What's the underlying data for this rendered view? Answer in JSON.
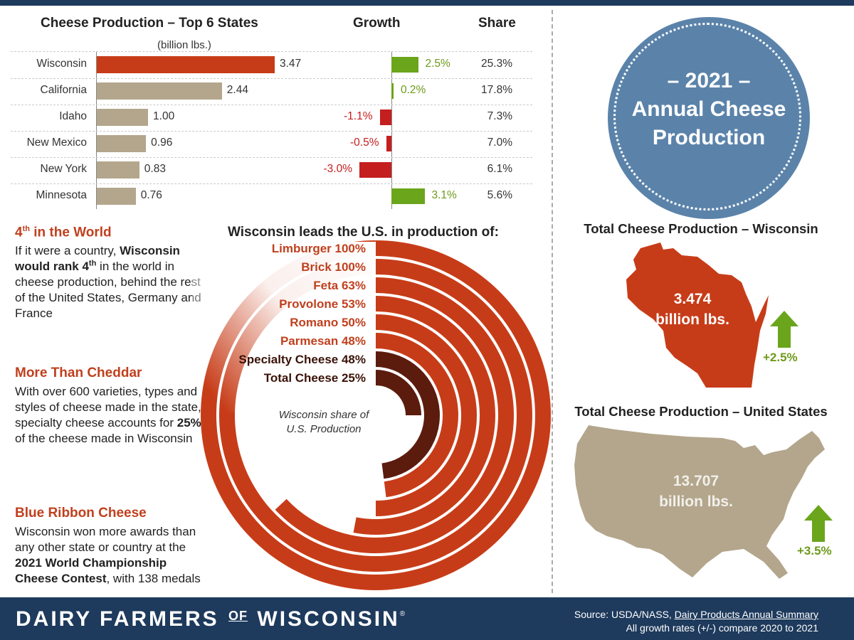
{
  "chart_data": [
    {
      "type": "bar",
      "title": "Cheese Production – Top 6 States",
      "unit": "(billion lbs.)",
      "categories": [
        "Wisconsin",
        "California",
        "Idaho",
        "New Mexico",
        "New York",
        "Minnesota"
      ],
      "values": [
        3.47,
        2.44,
        1.0,
        0.96,
        0.83,
        0.76
      ],
      "value_labels": [
        "3.47",
        "2.44",
        "1.00",
        "0.96",
        "0.83",
        "0.76"
      ],
      "colors": [
        "#c73c18",
        "#b3a68c",
        "#b3a68c",
        "#b3a68c",
        "#b3a68c",
        "#b3a68c"
      ],
      "xlim": [
        0,
        3.47
      ],
      "growth_title": "Growth",
      "growth": [
        2.5,
        0.2,
        -1.1,
        -0.5,
        -3.0,
        3.1
      ],
      "growth_labels": [
        "2.5%",
        "0.2%",
        "-1.1%",
        "-0.5%",
        "-3.0%",
        "3.1%"
      ],
      "growth_colors": {
        "positive": "#6aa51b",
        "negative": "#c41e1e"
      },
      "share_title": "Share",
      "share_labels": [
        "25.3%",
        "17.8%",
        "7.3%",
        "7.0%",
        "6.1%",
        "5.6%"
      ]
    },
    {
      "type": "radial_bar",
      "title": "Wisconsin leads the U.S. in production of:",
      "center_label": "Wisconsin share of U.S. Production",
      "categories": [
        "Limburger",
        "Brick",
        "Feta",
        "Provolone",
        "Romano",
        "Parmesan",
        "Specialty Cheese",
        "Total Cheese"
      ],
      "values": [
        100,
        100,
        63,
        53,
        50,
        48,
        48,
        25
      ],
      "labels": [
        "Limburger 100%",
        "Brick 100%",
        "Feta 63%",
        "Provolone 53%",
        "Romano 50%",
        "Parmesan 48%",
        "Specialty Cheese 48%",
        "Total Cheese 25%"
      ],
      "colors": [
        "#c73c18",
        "#c73c18",
        "#c73c18",
        "#c73c18",
        "#c73c18",
        "#c73c18",
        "#5b1c0e",
        "#5b1c0e"
      ]
    }
  ],
  "facts": [
    {
      "title_main": "4",
      "title_sup": "th",
      "title_rest": " in the World",
      "segments": [
        {
          "t": "If it were a country, "
        },
        {
          "t": "Wisconsin would rank 4",
          "b": true
        },
        {
          "t": "th",
          "b": true,
          "sup": true
        },
        {
          "t": " in the world in cheese production, behind the rest of the United States, Germany and France"
        }
      ]
    },
    {
      "title_main": "More Than Cheddar",
      "segments": [
        {
          "t": "With over 600 varieties, types and styles of cheese made in the state, specialty cheese accounts for "
        },
        {
          "t": "25%",
          "b": true
        },
        {
          "t": " of the cheese made in Wisconsin"
        }
      ]
    },
    {
      "title_main": "Blue Ribbon Cheese",
      "segments": [
        {
          "t": "Wisconsin won more awards than any other state or country at the "
        },
        {
          "t": "2021 World Championship Cheese Contest",
          "b": true
        },
        {
          "t": ", with 138 medals"
        }
      ]
    }
  ],
  "badge": {
    "line1": "– 2021 –",
    "line2": "Annual Cheese",
    "line3": "Production"
  },
  "wisconsin": {
    "heading": "Total Cheese Production – Wisconsin",
    "value": "3.474",
    "unit": "billion lbs.",
    "growth": "+2.5%",
    "color": "#c73c18"
  },
  "us": {
    "heading": "Total Cheese Production – United States",
    "value": "13.707",
    "unit": "billion lbs.",
    "growth": "+3.5%",
    "color": "#b3a68c"
  },
  "footer": {
    "brand_a": "DAIRY FARMERS",
    "brand_of": "OF",
    "brand_b": "WISCONSIN",
    "brand_reg": "®",
    "source_prefix": "Source: USDA/NASS, ",
    "source_link": "Dairy Products Annual Summary",
    "note": "All growth rates (+/-) compare 2020 to 2021"
  },
  "colors": {
    "navy": "#1e3a5c",
    "accent": "#c0401e",
    "badge": "#5b83aa",
    "green": "#6aa51b"
  }
}
